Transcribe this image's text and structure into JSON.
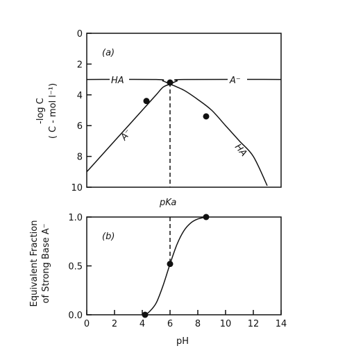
{
  "chart_data": [
    {
      "type": "line",
      "panel_label": "(a)",
      "ylabel": "-log C",
      "ylabel_units": "( C - mol l⁻¹)",
      "ylim": [
        0,
        10
      ],
      "y_inverted": true,
      "yticks": [
        0,
        2,
        4,
        6,
        8,
        10
      ],
      "xlim": [
        0,
        14
      ],
      "vline_label": "pKa",
      "vline_x": 6,
      "series": [
        {
          "name": "HA",
          "x": [
            0,
            5,
            5.5,
            6,
            7,
            8,
            9,
            10,
            11,
            12,
            13
          ],
          "values": [
            3,
            3.0,
            3.1,
            3.3,
            3.7,
            4.3,
            5.0,
            6.0,
            7.0,
            8.0,
            9.9
          ]
        },
        {
          "name": "A⁻",
          "x": [
            0,
            1,
            2,
            3,
            4,
            5,
            5.5,
            6,
            6.5,
            7,
            14
          ],
          "values": [
            9.0,
            8.0,
            7.0,
            6.0,
            5.0,
            4.0,
            3.5,
            3.3,
            3.1,
            3.0,
            3.0
          ]
        }
      ],
      "labels": {
        "ha_left": "HA",
        "a_right": "A⁻",
        "a_diag": "A⁻",
        "ha_diag": "HA"
      },
      "points": [
        {
          "x": 4.3,
          "y": 4.4
        },
        {
          "x": 6.0,
          "y": 3.2
        },
        {
          "x": 8.6,
          "y": 5.4
        }
      ]
    },
    {
      "type": "line",
      "panel_label": "(b)",
      "ylabel": "Equivalent Fraction",
      "ylabel2": "of Strong Base A⁻",
      "xlabel": "pH",
      "xlim": [
        0,
        14
      ],
      "xticks": [
        0,
        2,
        4,
        6,
        8,
        10,
        12,
        14
      ],
      "ylim": [
        0,
        1.0
      ],
      "yticks": [
        "0.0",
        "0.5",
        "1.0"
      ],
      "series": [
        {
          "name": "",
          "x": [
            4.2,
            4.5,
            5.0,
            5.5,
            6.0,
            6.5,
            7.0,
            7.5,
            8.0,
            8.6
          ],
          "values": [
            0.0,
            0.03,
            0.12,
            0.3,
            0.52,
            0.72,
            0.86,
            0.94,
            0.98,
            1.0
          ]
        }
      ],
      "points": [
        {
          "x": 4.2,
          "y": 0.0
        },
        {
          "x": 6.0,
          "y": 0.52
        },
        {
          "x": 8.6,
          "y": 1.0
        }
      ]
    }
  ]
}
